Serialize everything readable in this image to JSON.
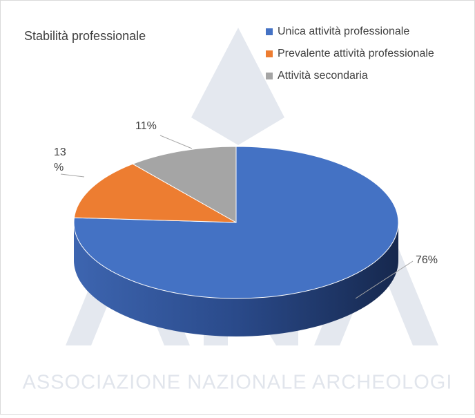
{
  "chart_data": {
    "type": "pie",
    "title": "Stabilità professionale",
    "categories": [
      "Unica attività professionale",
      "Prevalente attività professionale",
      "Attività secondaria"
    ],
    "values": [
      76,
      13,
      11
    ],
    "value_labels": [
      "76%",
      "13 %",
      "11%"
    ],
    "colors": [
      "#4472c4",
      "#ed7d31",
      "#a5a5a5"
    ],
    "legend": "top-right"
  },
  "watermark": "ASSOCIAZIONE NAZIONALE ARCHEOLOGI"
}
